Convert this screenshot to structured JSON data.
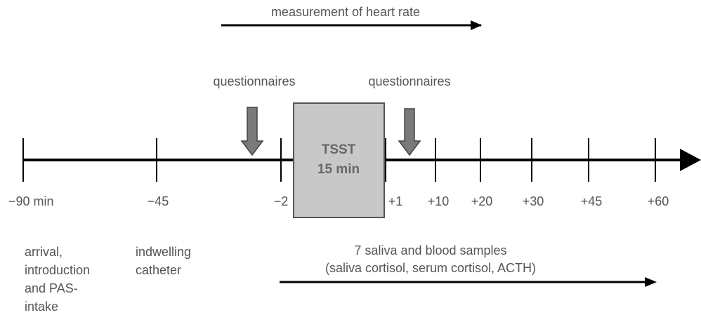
{
  "header": {
    "heart_rate": "measurement of heart rate"
  },
  "questionnaires": [
    "questionnaires",
    "questionnaires"
  ],
  "tsst": {
    "title": "TSST",
    "duration": "15 min"
  },
  "timeline": {
    "ticks": [
      "−90 min",
      "−45",
      "−2",
      "+1",
      "+10",
      "+20",
      "+30",
      "+45",
      "+60"
    ]
  },
  "phases": {
    "arrival": [
      "arrival,",
      "introduction",
      "and PAS-",
      "intake"
    ],
    "catheter": [
      "indwelling",
      "catheter"
    ],
    "samples": [
      "7 saliva and blood samples",
      "(saliva cortisol, serum cortisol, ACTH)"
    ]
  }
}
